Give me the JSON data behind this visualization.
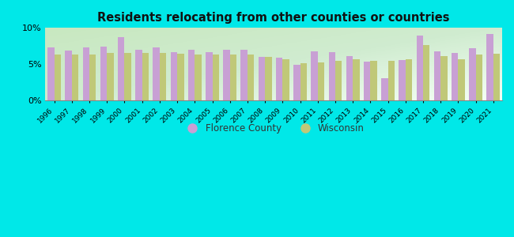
{
  "title": "Residents relocating from other counties or countries",
  "years": [
    1996,
    1997,
    1998,
    1999,
    2000,
    2001,
    2002,
    2003,
    2004,
    2005,
    2006,
    2007,
    2008,
    2009,
    2010,
    2011,
    2012,
    2013,
    2014,
    2015,
    2016,
    2017,
    2018,
    2019,
    2020,
    2021
  ],
  "florence_county": [
    7.3,
    6.9,
    7.3,
    7.4,
    8.7,
    7.0,
    7.3,
    6.6,
    7.0,
    6.7,
    7.0,
    7.0,
    6.0,
    5.9,
    4.9,
    6.8,
    6.6,
    6.1,
    5.3,
    3.1,
    5.6,
    8.9,
    6.8,
    6.5,
    7.2,
    9.2
  ],
  "wisconsin": [
    6.3,
    6.3,
    6.3,
    6.5,
    6.5,
    6.5,
    6.5,
    6.4,
    6.3,
    6.3,
    6.3,
    6.3,
    6.0,
    5.7,
    5.1,
    5.2,
    5.4,
    5.7,
    5.4,
    5.4,
    5.7,
    7.6,
    6.1,
    5.7,
    6.3,
    6.4
  ],
  "florence_color": "#c8a0d4",
  "wisconsin_color": "#c0c878",
  "bg_outer": "#00e8e8",
  "ylim": [
    0,
    10
  ],
  "yticks": [
    0,
    5,
    10
  ],
  "ytick_labels": [
    "0%",
    "5%",
    "10%"
  ],
  "legend_florence": "Florence County",
  "legend_wisconsin": "Wisconsin",
  "bar_width": 0.38
}
